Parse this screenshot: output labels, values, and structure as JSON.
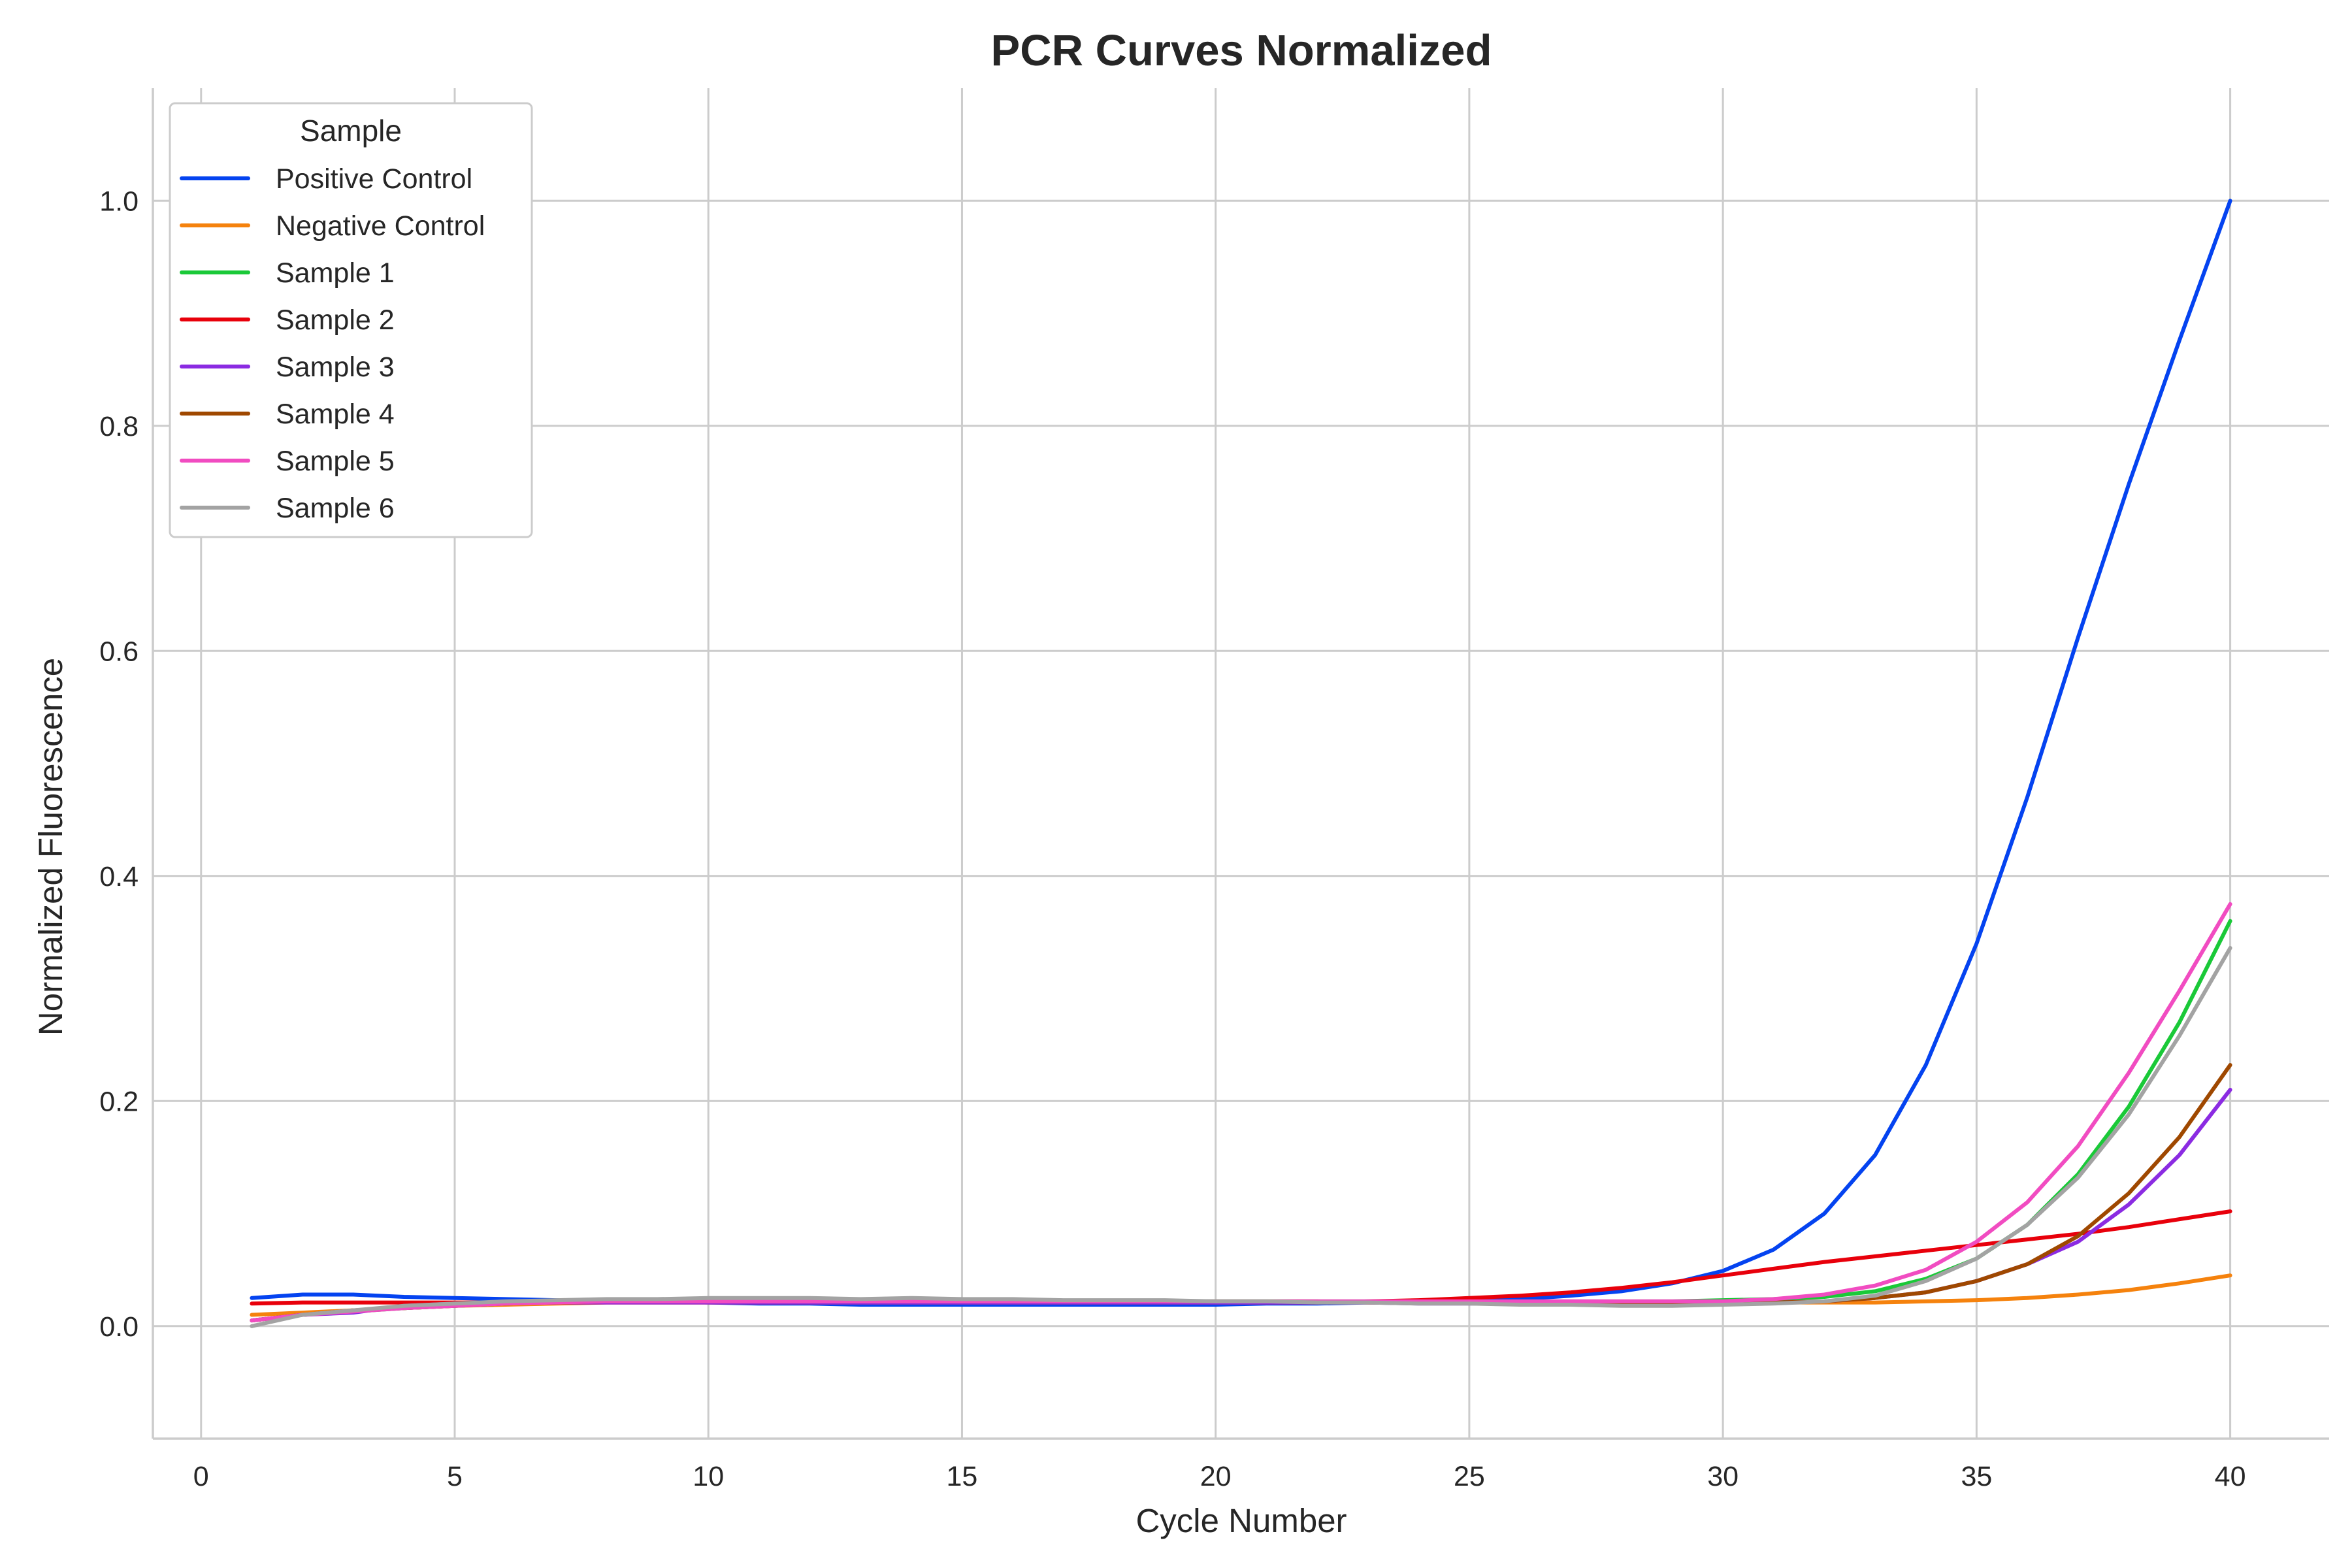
{
  "chart_data": {
    "type": "line",
    "title": "PCR Curves Normalized",
    "xlabel": "Cycle Number",
    "ylabel": "Normalized Fluorescence",
    "xlim": [
      -0.95,
      41.95
    ],
    "ylim": [
      -0.1,
      1.1
    ],
    "xticks": [
      0,
      5,
      10,
      15,
      20,
      25,
      30,
      35,
      40
    ],
    "yticks": [
      0.0,
      0.2,
      0.4,
      0.6,
      0.8,
      1.0
    ],
    "ytick_labels": [
      "0.0",
      "0.2",
      "0.4",
      "0.6",
      "0.8",
      "1.0"
    ],
    "grid": true,
    "legend_title": "Sample",
    "legend_position": "top-left",
    "x": [
      1,
      2,
      3,
      4,
      5,
      6,
      7,
      8,
      9,
      10,
      11,
      12,
      13,
      14,
      15,
      16,
      17,
      18,
      19,
      20,
      21,
      22,
      23,
      24,
      25,
      26,
      27,
      28,
      29,
      30,
      31,
      32,
      33,
      34,
      35,
      36,
      37,
      38,
      39,
      40
    ],
    "series": [
      {
        "name": "Positive Control",
        "color": "#0443f0",
        "values": [
          0.025,
          0.028,
          0.028,
          0.026,
          0.025,
          0.024,
          0.023,
          0.022,
          0.022,
          0.021,
          0.02,
          0.02,
          0.019,
          0.019,
          0.019,
          0.019,
          0.019,
          0.019,
          0.019,
          0.019,
          0.02,
          0.02,
          0.021,
          0.021,
          0.022,
          0.024,
          0.027,
          0.031,
          0.038,
          0.049,
          0.068,
          0.1,
          0.152,
          0.232,
          0.34,
          0.47,
          0.612,
          0.748,
          0.876,
          1.0
        ]
      },
      {
        "name": "Negative Control",
        "color": "#f5820d",
        "values": [
          0.01,
          0.012,
          0.014,
          0.016,
          0.018,
          0.019,
          0.02,
          0.021,
          0.021,
          0.021,
          0.021,
          0.021,
          0.021,
          0.021,
          0.021,
          0.021,
          0.021,
          0.021,
          0.021,
          0.021,
          0.021,
          0.021,
          0.021,
          0.021,
          0.021,
          0.021,
          0.021,
          0.021,
          0.021,
          0.021,
          0.021,
          0.021,
          0.021,
          0.022,
          0.023,
          0.025,
          0.028,
          0.032,
          0.038,
          0.045
        ]
      },
      {
        "name": "Sample 1",
        "color": "#1ac938",
        "values": [
          0.005,
          0.01,
          0.013,
          0.016,
          0.018,
          0.02,
          0.021,
          0.022,
          0.022,
          0.022,
          0.022,
          0.022,
          0.022,
          0.022,
          0.022,
          0.022,
          0.022,
          0.022,
          0.022,
          0.022,
          0.022,
          0.022,
          0.022,
          0.022,
          0.022,
          0.022,
          0.022,
          0.022,
          0.022,
          0.023,
          0.024,
          0.026,
          0.031,
          0.042,
          0.06,
          0.09,
          0.135,
          0.195,
          0.27,
          0.36
        ]
      },
      {
        "name": "Sample 2",
        "color": "#e8000b",
        "values": [
          0.02,
          0.021,
          0.021,
          0.021,
          0.021,
          0.021,
          0.021,
          0.021,
          0.021,
          0.021,
          0.021,
          0.021,
          0.021,
          0.021,
          0.021,
          0.021,
          0.021,
          0.021,
          0.021,
          0.021,
          0.021,
          0.021,
          0.022,
          0.023,
          0.025,
          0.027,
          0.03,
          0.034,
          0.039,
          0.045,
          0.051,
          0.057,
          0.062,
          0.067,
          0.072,
          0.077,
          0.082,
          0.088,
          0.095,
          0.102
        ]
      },
      {
        "name": "Sample 3",
        "color": "#8b2be2",
        "values": [
          0.005,
          0.01,
          0.012,
          0.018,
          0.02,
          0.021,
          0.021,
          0.021,
          0.021,
          0.021,
          0.021,
          0.021,
          0.021,
          0.021,
          0.021,
          0.021,
          0.021,
          0.021,
          0.021,
          0.021,
          0.021,
          0.021,
          0.021,
          0.02,
          0.02,
          0.02,
          0.02,
          0.02,
          0.02,
          0.02,
          0.021,
          0.022,
          0.025,
          0.03,
          0.04,
          0.055,
          0.075,
          0.108,
          0.152,
          0.21
        ]
      },
      {
        "name": "Sample 4",
        "color": "#9f4800",
        "values": [
          0.005,
          0.01,
          0.014,
          0.016,
          0.018,
          0.02,
          0.021,
          0.022,
          0.022,
          0.022,
          0.022,
          0.022,
          0.022,
          0.022,
          0.022,
          0.022,
          0.022,
          0.022,
          0.022,
          0.022,
          0.022,
          0.022,
          0.021,
          0.021,
          0.021,
          0.021,
          0.021,
          0.021,
          0.021,
          0.021,
          0.021,
          0.022,
          0.025,
          0.03,
          0.04,
          0.055,
          0.08,
          0.118,
          0.168,
          0.232
        ]
      },
      {
        "name": "Sample 5",
        "color": "#f14cc1",
        "values": [
          0.005,
          0.01,
          0.013,
          0.016,
          0.018,
          0.02,
          0.021,
          0.022,
          0.022,
          0.022,
          0.022,
          0.022,
          0.022,
          0.022,
          0.022,
          0.022,
          0.022,
          0.022,
          0.022,
          0.022,
          0.022,
          0.022,
          0.022,
          0.022,
          0.022,
          0.022,
          0.022,
          0.022,
          0.022,
          0.022,
          0.024,
          0.028,
          0.036,
          0.05,
          0.075,
          0.11,
          0.16,
          0.225,
          0.298,
          0.375
        ]
      },
      {
        "name": "Sample 6",
        "color": "#a3a3a3",
        "values": [
          0.0,
          0.01,
          0.014,
          0.018,
          0.02,
          0.022,
          0.023,
          0.024,
          0.024,
          0.025,
          0.025,
          0.025,
          0.024,
          0.025,
          0.024,
          0.024,
          0.023,
          0.023,
          0.023,
          0.022,
          0.022,
          0.021,
          0.021,
          0.02,
          0.02,
          0.019,
          0.019,
          0.018,
          0.018,
          0.019,
          0.02,
          0.022,
          0.027,
          0.04,
          0.06,
          0.09,
          0.132,
          0.188,
          0.258,
          0.336
        ]
      }
    ]
  }
}
